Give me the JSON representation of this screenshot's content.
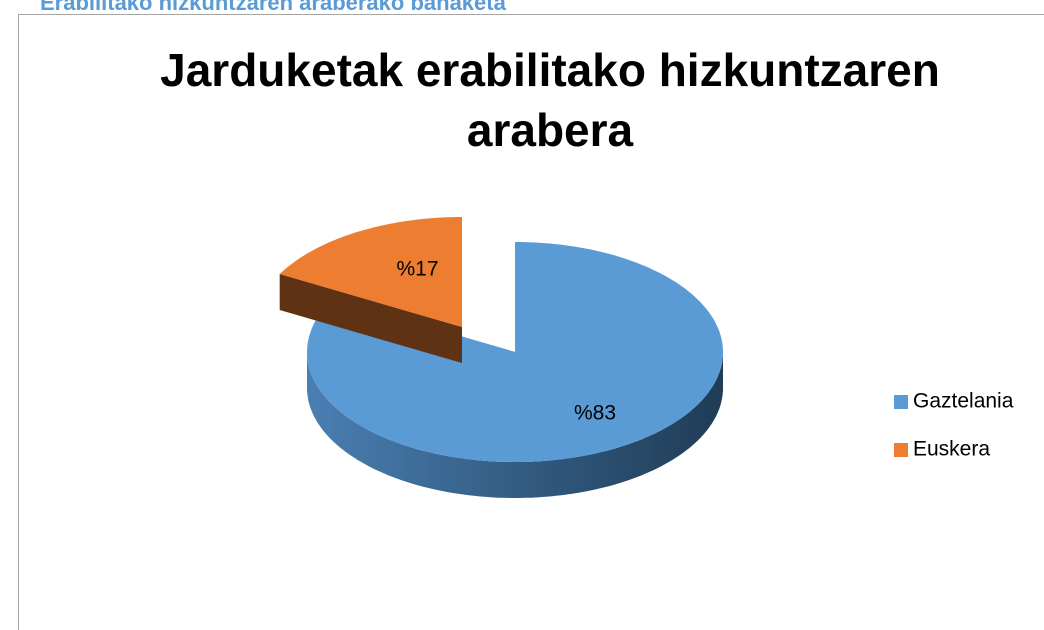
{
  "heading": "Erabilitako hizkuntzaren araberako banaketa",
  "chart_data": {
    "type": "pie",
    "title": "Jarduketak erabilitako hizkuntzaren arabera",
    "categories": [
      "Gaztelania",
      "Euskera"
    ],
    "values": [
      83,
      17
    ],
    "value_labels": [
      "%83",
      "%17"
    ],
    "colors": [
      "#5b9bd5",
      "#ed7d31"
    ],
    "legend": "right"
  }
}
